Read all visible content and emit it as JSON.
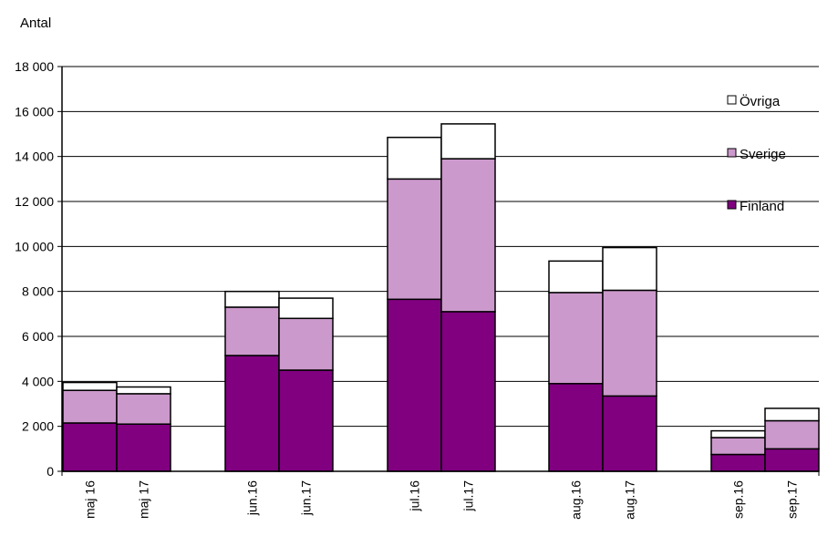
{
  "chart_data": {
    "type": "bar",
    "stacked": true,
    "ylabel": "Antal",
    "xlabel": "",
    "title": "",
    "ylim": [
      0,
      18000
    ],
    "yticks": [
      0,
      2000,
      4000,
      6000,
      8000,
      10000,
      12000,
      14000,
      16000,
      18000
    ],
    "ytick_labels": [
      "0",
      "2 000",
      "4 000",
      "6 000",
      "8 000",
      "10 000",
      "12 000",
      "14 000",
      "16 000",
      "18 000"
    ],
    "grid": true,
    "legend_position": "right",
    "categories": [
      "maj 16",
      "maj 17",
      "jun.16",
      "jun.17",
      "jul.16",
      "jul.17",
      "aug.16",
      "aug.17",
      "sep.16",
      "sep.17"
    ],
    "series": [
      {
        "name": "Finland",
        "color": "#800080",
        "values": [
          2150,
          2100,
          5150,
          4500,
          7650,
          7100,
          3900,
          3350,
          750,
          1000
        ]
      },
      {
        "name": "Sverige",
        "color": "#cc99cc",
        "values": [
          1450,
          1350,
          2150,
          2300,
          5350,
          6800,
          4050,
          4700,
          750,
          1250
        ]
      },
      {
        "name": "Övriga",
        "color": "#ffffff",
        "values": [
          350,
          300,
          700,
          900,
          1850,
          1550,
          1400,
          1900,
          300,
          550
        ]
      }
    ]
  }
}
